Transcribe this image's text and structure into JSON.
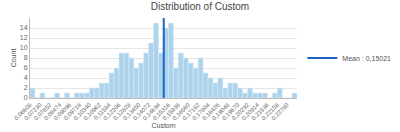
{
  "chart_data": {
    "type": "histogram",
    "title": "Distribution of Custom",
    "x_label": "Custom",
    "y_label": "Count",
    "bins": [
      0.06608,
      0.06919,
      0.0723,
      0.07541,
      0.07852,
      0.08163,
      0.08474,
      0.08785,
      0.09096,
      0.09407,
      0.09718,
      0.10029,
      0.1034,
      0.10651,
      0.10962,
      0.11273,
      0.11584,
      0.11895,
      0.12206,
      0.12517,
      0.12828,
      0.13139,
      0.1345,
      0.13761,
      0.14072,
      0.14383,
      0.14694,
      0.15005,
      0.15316,
      0.15627,
      0.15938,
      0.16249,
      0.1656,
      0.16871,
      0.17182,
      0.17493,
      0.17804,
      0.18115,
      0.18426,
      0.18737,
      0.19048,
      0.19359,
      0.1967,
      0.19981,
      0.20292,
      0.20603,
      0.20914,
      0.21225,
      0.21536,
      0.21847,
      0.22158,
      0.22469,
      0.2278,
      0.23091,
      0.23402
    ],
    "values": [
      2,
      0,
      1,
      0,
      0,
      1,
      0,
      1,
      0,
      1,
      1,
      1,
      2,
      2,
      3,
      3,
      5,
      6,
      9,
      9,
      8,
      6,
      7,
      9,
      11,
      15,
      9,
      14,
      15,
      6,
      9,
      8,
      7,
      6,
      8,
      5,
      4,
      3,
      4,
      2,
      3,
      3,
      2,
      1,
      2,
      1,
      1,
      1,
      0,
      1,
      2,
      0,
      0,
      1
    ],
    "color": "#add3ec",
    "mean_line": {
      "name": "Mean : 0,15021",
      "value": 0.15021,
      "color": "#1a66c2"
    },
    "xlim": [
      0.06608,
      0.23402
    ],
    "xticks": [
      {
        "value": 0.06608,
        "label": "0,06608"
      },
      {
        "value": 0.0723,
        "label": "0,07230"
      },
      {
        "value": 0.07852,
        "label": "0,07852"
      },
      {
        "value": 0.08474,
        "label": "0,08474"
      },
      {
        "value": 0.09096,
        "label": "0,09096"
      },
      {
        "value": 0.09718,
        "label": "0,09718"
      },
      {
        "value": 0.1034,
        "label": "0,10340"
      },
      {
        "value": 0.10962,
        "label": "0,10962"
      },
      {
        "value": 0.11584,
        "label": "0,11584"
      },
      {
        "value": 0.12206,
        "label": "0,12206"
      },
      {
        "value": 0.12828,
        "label": "0,12828"
      },
      {
        "value": 0.1345,
        "label": "0,13450"
      },
      {
        "value": 0.14072,
        "label": "0,14072"
      },
      {
        "value": 0.14694,
        "label": "0,14694"
      },
      {
        "value": 0.15316,
        "label": "0,15316"
      },
      {
        "value": 0.15938,
        "label": "0,15938"
      },
      {
        "value": 0.1656,
        "label": "0,16560"
      },
      {
        "value": 0.17182,
        "label": "0,17182"
      },
      {
        "value": 0.17804,
        "label": "0,17804"
      },
      {
        "value": 0.18426,
        "label": "0,18426"
      },
      {
        "value": 0.19048,
        "label": "0,19048"
      },
      {
        "value": 0.1967,
        "label": "0,19670"
      },
      {
        "value": 0.20292,
        "label": "0,20292"
      },
      {
        "value": 0.20914,
        "label": "0,20914"
      },
      {
        "value": 0.21536,
        "label": "0,21536"
      },
      {
        "value": 0.22158,
        "label": "0,22158"
      },
      {
        "value": 0.2278,
        "label": "0,22780"
      }
    ],
    "ylim": [
      0,
      16
    ],
    "yticks": [
      0,
      2,
      4,
      6,
      8,
      10,
      12,
      14
    ],
    "grid": true,
    "legend": "right"
  }
}
